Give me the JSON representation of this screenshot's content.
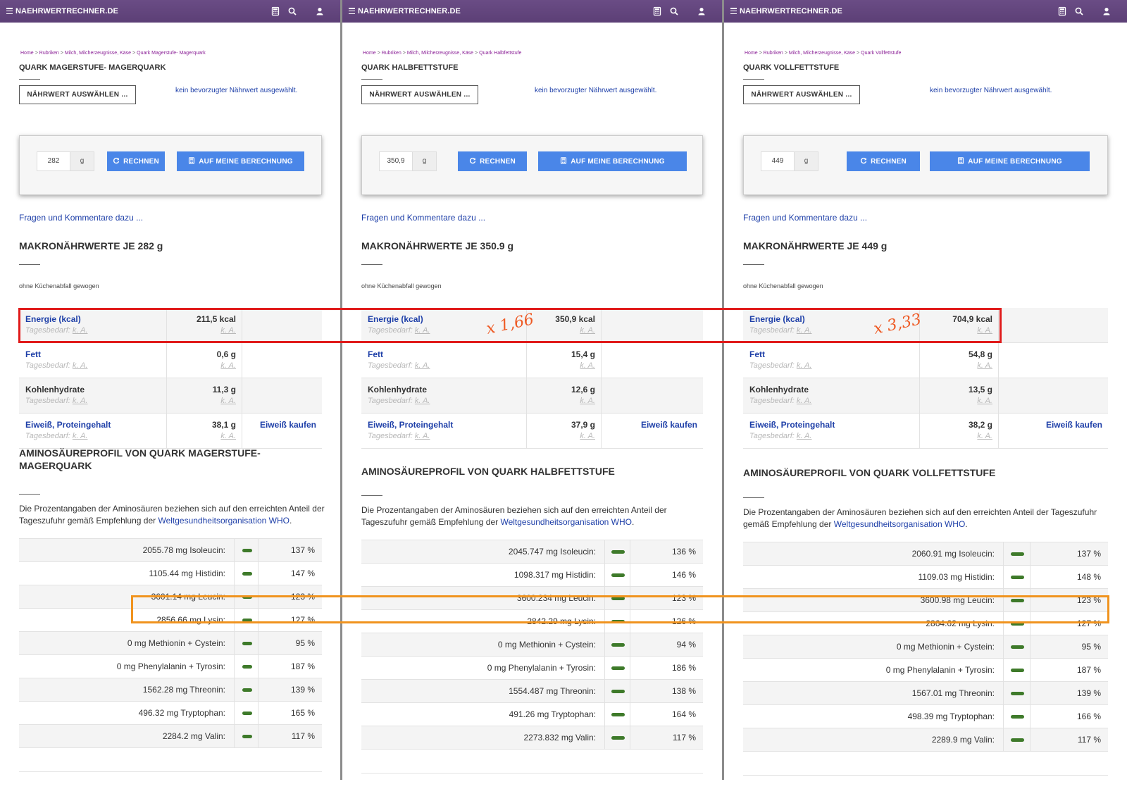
{
  "site": {
    "title": "NAEHRWERTRECHNER.DE",
    "icons": [
      "hamburger-menu-icon",
      "calculator-icon",
      "search-icon",
      "user-icon"
    ]
  },
  "common": {
    "select_button": "NÄHRWERT AUSWÄHLEN ...",
    "preferred_text": "kein bevorzugter Nährwert ausgewählt.",
    "unit": "g",
    "rechnen_label": "RECHNEN",
    "auf_label": "AUF MEINE BERECHNUNG",
    "comments_link": "Fragen und Kommentare dazu ...",
    "macro_note": "ohne Küchenabfall gewogen",
    "daily_prefix": "Tagesbedarf:",
    "ka": "k. A.",
    "buy_protein": "Eiweiß kaufen",
    "amino_desc_text": "Die Prozentangaben der Aminosäuren beziehen sich auf den erreichten Anteil der Tageszufuhr gemäß Empfehlung der",
    "amino_desc_link": "Weltgesundheitsorganisation WHO",
    "amino_desc_end": ".",
    "breadcrumb_sep": ">",
    "nutrient_names": [
      "Energie (kcal)",
      "Fett",
      "Kohlenhydrate",
      "Eiweiß, Proteingehalt"
    ]
  },
  "panels": [
    {
      "breadcrumb": [
        "Home",
        "Rubriken",
        "Milch, Milcherzeugnisse, Käse",
        "Quark Magerstufe- Magerquark"
      ],
      "title": "QUARK MAGERSTUFE- MAGERQUARK",
      "amount": "282",
      "macro_heading": "MAKRONÄHRWERTE JE 282 g",
      "macros": [
        "211,5 kcal",
        "0,6 g",
        "11,3 g",
        "38,1 g"
      ],
      "amino_heading": "AMINOSÄUREPROFIL VON QUARK MAGERSTUFE-MAGERQUARK",
      "aminos": [
        [
          "2055.78 mg Isoleucin:",
          "137 %"
        ],
        [
          "1105.44 mg Histidin:",
          "147 %"
        ],
        [
          "3601.14 mg Leucin:",
          "123 %"
        ],
        [
          "2856.66 mg Lysin:",
          "127 %"
        ],
        [
          "0 mg Methionin + Cystein:",
          "95 %"
        ],
        [
          "0 mg Phenylalanin + Tyrosin:",
          "187 %"
        ],
        [
          "1562.28 mg Threonin:",
          "139 %"
        ],
        [
          "496.32 mg Tryptophan:",
          "165 %"
        ],
        [
          "2284.2 mg Valin:",
          "117 %"
        ]
      ]
    },
    {
      "breadcrumb": [
        "Home",
        "Rubriken",
        "Milch, Milcherzeugnisse, Käse",
        "Quark Halbfettstufe"
      ],
      "title": "QUARK HALBFETTSTUFE",
      "amount": "350,9",
      "macro_heading": "MAKRONÄHRWERTE JE 350.9 g",
      "macros": [
        "350,9 kcal",
        "15,4 g",
        "12,6 g",
        "37,9 g"
      ],
      "amino_heading": "AMINOSÄUREPROFIL VON QUARK HALBFETTSTUFE",
      "aminos": [
        [
          "2045.747 mg Isoleucin:",
          "136 %"
        ],
        [
          "1098.317 mg Histidin:",
          "146 %"
        ],
        [
          "3600.234 mg Leucin:",
          "123 %"
        ],
        [
          "2842.29 mg Lysin:",
          "126 %"
        ],
        [
          "0 mg Methionin + Cystein:",
          "94 %"
        ],
        [
          "0 mg Phenylalanin + Tyrosin:",
          "186 %"
        ],
        [
          "1554.487 mg Threonin:",
          "138 %"
        ],
        [
          "491.26 mg Tryptophan:",
          "164 %"
        ],
        [
          "2273.832 mg Valin:",
          "117 %"
        ]
      ]
    },
    {
      "breadcrumb": [
        "Home",
        "Rubriken",
        "Milch, Milcherzeugnisse, Käse",
        "Quark Vollfettstufe"
      ],
      "title": "QUARK VOLLFETTSTUFE",
      "amount": "449",
      "macro_heading": "MAKRONÄHRWERTE JE 449 g",
      "macros": [
        "704,9 kcal",
        "54,8 g",
        "13,5 g",
        "38,2 g"
      ],
      "amino_heading": "AMINOSÄUREPROFIL VON QUARK VOLLFETTSTUFE",
      "aminos": [
        [
          "2060.91 mg Isoleucin:",
          "137 %"
        ],
        [
          "1109.03 mg Histidin:",
          "148 %"
        ],
        [
          "3600.98 mg Leucin:",
          "123 %"
        ],
        [
          "2864.62 mg Lysin:",
          "127 %"
        ],
        [
          "0 mg Methionin + Cystein:",
          "95 %"
        ],
        [
          "0 mg Phenylalanin + Tyrosin:",
          "187 %"
        ],
        [
          "1567.01 mg Threonin:",
          "139 %"
        ],
        [
          "498.39 mg Tryptophan:",
          "166 %"
        ],
        [
          "2289.9 mg Valin:",
          "117 %"
        ]
      ]
    }
  ],
  "annotations": {
    "factor_halbfett": "x 1,66",
    "factor_vollfett": "x 3,33",
    "highlight_color_energy": "#e01b1b",
    "highlight_color_leucin": "#f0931e"
  },
  "colors": {
    "navbar": "#5c3f76",
    "accent_blue": "#4a86e8",
    "link_blue": "#1e3fa8",
    "amino_bar_green": "#3e7a2a"
  }
}
